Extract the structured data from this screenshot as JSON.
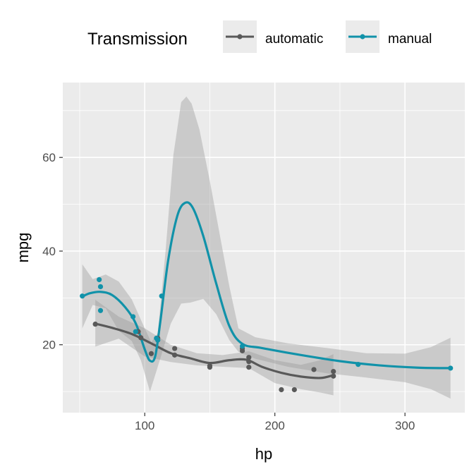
{
  "chart_data": {
    "type": "line",
    "xlabel": "hp",
    "ylabel": "mpg",
    "xlim": [
      37,
      346
    ],
    "ylim": [
      5.5,
      76
    ],
    "x_ticks": [
      100,
      200,
      300
    ],
    "y_ticks": [
      20,
      40,
      60
    ],
    "grid": true,
    "legend": {
      "title": "Transmission",
      "position": "top",
      "entries": [
        "automatic",
        "manual"
      ]
    },
    "series": [
      {
        "name": "automatic",
        "color": "#595959",
        "points": [
          [
            62,
            24.4
          ],
          [
            95,
            22.8
          ],
          [
            97,
            21.5
          ],
          [
            105,
            18.1
          ],
          [
            110,
            21.4
          ],
          [
            123,
            19.2
          ],
          [
            123,
            17.8
          ],
          [
            150,
            15.5
          ],
          [
            150,
            15.2
          ],
          [
            175,
            18.7
          ],
          [
            175,
            19.2
          ],
          [
            180,
            16.4
          ],
          [
            180,
            17.3
          ],
          [
            180,
            15.2
          ],
          [
            205,
            10.4
          ],
          [
            215,
            10.4
          ],
          [
            230,
            14.7
          ],
          [
            245,
            14.3
          ],
          [
            245,
            13.3
          ]
        ],
        "smooth": [
          [
            62,
            24.5
          ],
          [
            75,
            23.6
          ],
          [
            90,
            22.3
          ],
          [
            105,
            20.3
          ],
          [
            120,
            18.2
          ],
          [
            135,
            17.1
          ],
          [
            150,
            16.1
          ],
          [
            165,
            16.7
          ],
          [
            178,
            16.8
          ],
          [
            190,
            15.3
          ],
          [
            205,
            14.0
          ],
          [
            220,
            13.2
          ],
          [
            235,
            12.9
          ],
          [
            245,
            13.5
          ]
        ],
        "band": {
          "upper": [
            [
              62,
              29.6
            ],
            [
              80,
              26.0
            ],
            [
              100,
              23.5
            ],
            [
              120,
              20.0
            ],
            [
              140,
              18.2
            ],
            [
              160,
              17.8
            ],
            [
              180,
              18.6
            ],
            [
              200,
              16.7
            ],
            [
              220,
              15.7
            ],
            [
              235,
              16.7
            ],
            [
              245,
              18.0
            ]
          ],
          "lower": [
            [
              62,
              19.6
            ],
            [
              80,
              21.3
            ],
            [
              100,
              17.5
            ],
            [
              120,
              16.3
            ],
            [
              140,
              15.6
            ],
            [
              160,
              15.3
            ],
            [
              180,
              15.0
            ],
            [
              200,
              11.8
            ],
            [
              220,
              10.5
            ],
            [
              235,
              9.8
            ],
            [
              245,
              9.2
            ]
          ]
        }
      },
      {
        "name": "manual",
        "color": "#1192a9",
        "points": [
          [
            52,
            30.4
          ],
          [
            65,
            33.9
          ],
          [
            66,
            32.4
          ],
          [
            66,
            27.3
          ],
          [
            91,
            26.0
          ],
          [
            93,
            22.8
          ],
          [
            109,
            21.4
          ],
          [
            110,
            21.0
          ],
          [
            110,
            21.0
          ],
          [
            113,
            30.4
          ],
          [
            175,
            19.7
          ],
          [
            264,
            15.8
          ],
          [
            335,
            15.0
          ]
        ],
        "smooth": [
          [
            52,
            30.3
          ],
          [
            58,
            31.0
          ],
          [
            66,
            31.3
          ],
          [
            75,
            30.6
          ],
          [
            85,
            28.0
          ],
          [
            93,
            24.6
          ],
          [
            100,
            19.0
          ],
          [
            104,
            16.6
          ],
          [
            108,
            17.5
          ],
          [
            112,
            25.0
          ],
          [
            118,
            38.0
          ],
          [
            125,
            47.5
          ],
          [
            131,
            50.3
          ],
          [
            137,
            49.2
          ],
          [
            145,
            43.2
          ],
          [
            155,
            33.0
          ],
          [
            165,
            24.0
          ],
          [
            175,
            20.2
          ],
          [
            190,
            19.3
          ],
          [
            220,
            17.8
          ],
          [
            250,
            16.5
          ],
          [
            280,
            15.6
          ],
          [
            310,
            15.1
          ],
          [
            335,
            15.0
          ]
        ],
        "band": {
          "upper": [
            [
              52,
              37.2
            ],
            [
              60,
              34.0
            ],
            [
              70,
              35.0
            ],
            [
              80,
              33.5
            ],
            [
              90,
              29.7
            ],
            [
              100,
              23.5
            ],
            [
              105,
              20.5
            ],
            [
              110,
              22.5
            ],
            [
              116,
              40.0
            ],
            [
              122,
              60.5
            ],
            [
              128,
              71.8
            ],
            [
              132,
              73.0
            ],
            [
              136,
              71.5
            ],
            [
              142,
              66.0
            ],
            [
              150,
              55.0
            ],
            [
              158,
              43.0
            ],
            [
              165,
              32.5
            ],
            [
              172,
              23.5
            ],
            [
              185,
              21.6
            ],
            [
              210,
              20.3
            ],
            [
              240,
              19.3
            ],
            [
              270,
              18.2
            ],
            [
              300,
              18.1
            ],
            [
              320,
              19.5
            ],
            [
              335,
              21.5
            ]
          ],
          "lower": [
            [
              52,
              23.5
            ],
            [
              60,
              28.5
            ],
            [
              70,
              27.8
            ],
            [
              80,
              23.0
            ],
            [
              90,
              20.8
            ],
            [
              97,
              16.7
            ],
            [
              104,
              10.0
            ],
            [
              108,
              13.5
            ],
            [
              113,
              18.0
            ],
            [
              120,
              24.5
            ],
            [
              128,
              28.8
            ],
            [
              135,
              29.0
            ],
            [
              145,
              29.8
            ],
            [
              155,
              26.5
            ],
            [
              165,
              21.0
            ],
            [
              172,
              18.5
            ],
            [
              185,
              17.0
            ],
            [
              210,
              15.3
            ],
            [
              240,
              13.9
            ],
            [
              270,
              13.0
            ],
            [
              300,
              12.0
            ],
            [
              320,
              10.5
            ],
            [
              335,
              8.5
            ]
          ]
        }
      }
    ]
  }
}
